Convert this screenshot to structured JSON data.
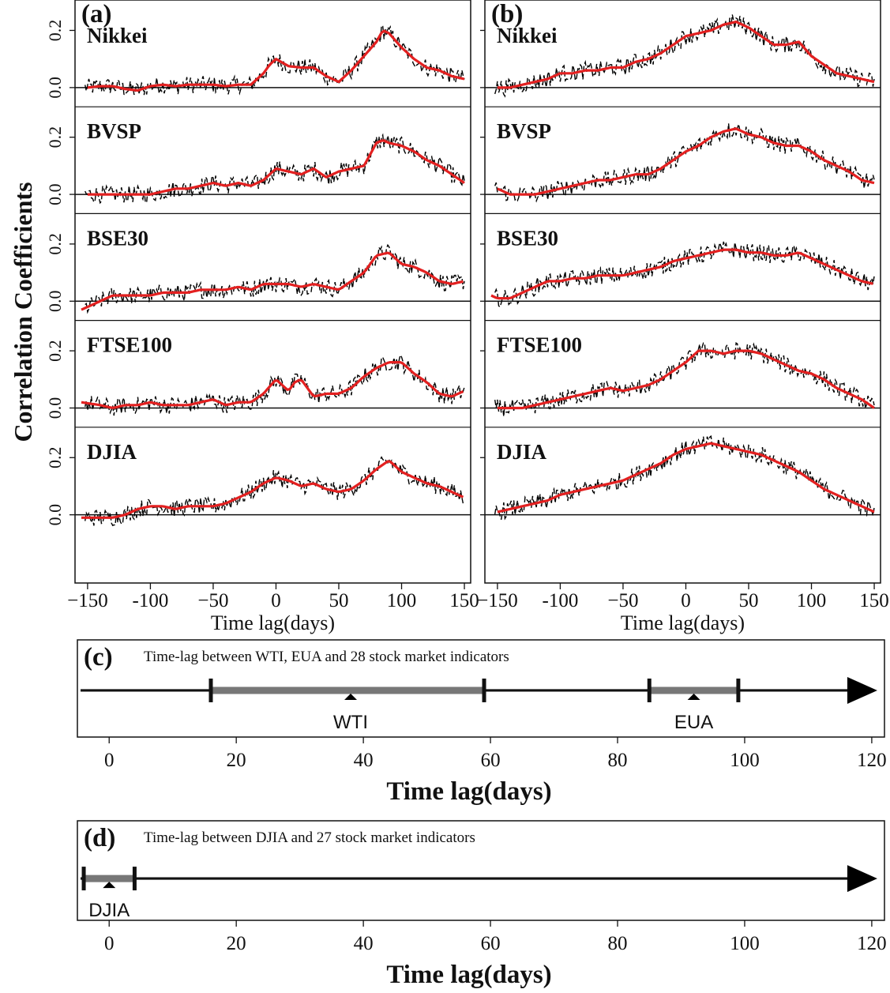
{
  "ylabel": "Correlation Coefficients",
  "chart_data": [
    {
      "type": "line",
      "panel_label": "(a)",
      "xlabel": "Time lag(days)",
      "xlim": [
        -160,
        155
      ],
      "xticks": [
        -150,
        -100,
        -50,
        0,
        50,
        100,
        150
      ],
      "xtick_labels": [
        "−150",
        "-100",
        "−50",
        "0",
        "50",
        "100",
        "150"
      ],
      "yticks": [
        0.0,
        0.2
      ],
      "ytick_labels": [
        "0.0",
        "0.2"
      ],
      "ylim_per_row": [
        -0.08,
        0.27
      ],
      "colors": {
        "raw": "#000000",
        "smooth": "#e32020"
      },
      "series": [
        {
          "name": "Nikkei",
          "x": [
            -150,
            -140,
            -130,
            -120,
            -110,
            -100,
            -90,
            -80,
            -70,
            -60,
            -50,
            -40,
            -30,
            -20,
            -10,
            -5,
            0,
            10,
            20,
            30,
            40,
            50,
            60,
            70,
            80,
            85,
            90,
            100,
            110,
            120,
            130,
            140,
            150
          ],
          "y": [
            0.0,
            0.005,
            0.005,
            -0.005,
            -0.01,
            0.005,
            0.01,
            0.005,
            0.01,
            0.01,
            0.01,
            0.005,
            0.01,
            0.01,
            0.05,
            0.08,
            0.1,
            0.075,
            0.07,
            0.07,
            0.04,
            0.02,
            0.06,
            0.11,
            0.16,
            0.2,
            0.19,
            0.14,
            0.1,
            0.07,
            0.06,
            0.04,
            0.03
          ]
        },
        {
          "name": "BVSP",
          "x": [
            -150,
            -140,
            -130,
            -120,
            -110,
            -100,
            -90,
            -80,
            -70,
            -60,
            -50,
            -40,
            -30,
            -20,
            -10,
            0,
            10,
            20,
            30,
            40,
            50,
            60,
            70,
            80,
            85,
            90,
            100,
            110,
            120,
            130,
            140,
            150
          ],
          "y": [
            0.0,
            0.0,
            0.0,
            0.0,
            0.0,
            0.0,
            0.01,
            0.02,
            0.02,
            0.03,
            0.04,
            0.03,
            0.04,
            0.03,
            0.05,
            0.09,
            0.08,
            0.07,
            0.09,
            0.06,
            0.08,
            0.09,
            0.1,
            0.18,
            0.19,
            0.18,
            0.17,
            0.15,
            0.12,
            0.1,
            0.07,
            0.04
          ]
        },
        {
          "name": "BSE30",
          "x": [
            -155,
            -150,
            -140,
            -130,
            -120,
            -110,
            -100,
            -90,
            -80,
            -70,
            -60,
            -50,
            -40,
            -30,
            -20,
            -10,
            0,
            10,
            20,
            30,
            40,
            50,
            60,
            70,
            80,
            90,
            100,
            110,
            120,
            130,
            140,
            150
          ],
          "y": [
            -0.03,
            -0.02,
            0.0,
            0.02,
            0.02,
            0.02,
            0.02,
            0.03,
            0.03,
            0.03,
            0.04,
            0.04,
            0.04,
            0.05,
            0.04,
            0.06,
            0.06,
            0.06,
            0.05,
            0.06,
            0.05,
            0.04,
            0.07,
            0.1,
            0.16,
            0.17,
            0.13,
            0.12,
            0.1,
            0.07,
            0.06,
            0.07
          ]
        },
        {
          "name": "FTSE100",
          "x": [
            -155,
            -140,
            -130,
            -120,
            -110,
            -100,
            -90,
            -80,
            -70,
            -60,
            -50,
            -40,
            -30,
            -20,
            -10,
            0,
            5,
            10,
            15,
            20,
            30,
            40,
            50,
            60,
            70,
            80,
            90,
            100,
            110,
            120,
            130,
            140,
            150
          ],
          "y": [
            0.02,
            0.01,
            0.0,
            0.01,
            0.01,
            0.02,
            0.01,
            0.01,
            0.01,
            0.02,
            0.03,
            0.01,
            0.02,
            0.02,
            0.05,
            0.1,
            0.08,
            0.06,
            0.09,
            0.1,
            0.04,
            0.05,
            0.05,
            0.07,
            0.11,
            0.14,
            0.16,
            0.16,
            0.12,
            0.09,
            0.05,
            0.04,
            0.06
          ]
        },
        {
          "name": "DJIA",
          "x": [
            -155,
            -150,
            -140,
            -130,
            -120,
            -110,
            -100,
            -90,
            -80,
            -70,
            -60,
            -50,
            -40,
            -30,
            -20,
            -10,
            0,
            10,
            20,
            30,
            40,
            50,
            60,
            70,
            80,
            90,
            100,
            110,
            120,
            130,
            140,
            150
          ],
          "y": [
            -0.01,
            -0.01,
            -0.01,
            -0.01,
            0.0,
            0.02,
            0.03,
            0.03,
            0.02,
            0.03,
            0.03,
            0.03,
            0.04,
            0.06,
            0.08,
            0.11,
            0.13,
            0.12,
            0.1,
            0.11,
            0.09,
            0.08,
            0.09,
            0.12,
            0.16,
            0.19,
            0.15,
            0.13,
            0.11,
            0.1,
            0.08,
            0.06
          ]
        }
      ]
    },
    {
      "type": "line",
      "panel_label": "(b)",
      "xlabel": "Time lag(days)",
      "xlim": [
        -160,
        155
      ],
      "xticks": [
        -150,
        -100,
        -50,
        0,
        50,
        100,
        150
      ],
      "xtick_labels": [
        "−150",
        "-100",
        "−50",
        "0",
        "50",
        "100",
        "150"
      ],
      "yticks": [
        0.0,
        0.2
      ],
      "ytick_labels": [
        "0.0",
        "0.2"
      ],
      "ylim_per_row": [
        -0.08,
        0.27
      ],
      "colors": {
        "raw": "#000000",
        "smooth": "#e32020"
      },
      "series": [
        {
          "name": "Nikkei",
          "x": [
            -150,
            -140,
            -130,
            -120,
            -110,
            -100,
            -90,
            -80,
            -70,
            -60,
            -50,
            -40,
            -30,
            -20,
            -10,
            0,
            10,
            20,
            30,
            40,
            50,
            60,
            70,
            80,
            90,
            100,
            110,
            120,
            130,
            140,
            150
          ],
          "y": [
            0.0,
            0.0,
            0.01,
            0.02,
            0.03,
            0.05,
            0.05,
            0.06,
            0.06,
            0.07,
            0.07,
            0.09,
            0.1,
            0.12,
            0.15,
            0.18,
            0.19,
            0.2,
            0.22,
            0.23,
            0.21,
            0.18,
            0.15,
            0.15,
            0.16,
            0.11,
            0.08,
            0.05,
            0.04,
            0.03,
            0.02
          ]
        },
        {
          "name": "BVSP",
          "x": [
            -150,
            -140,
            -130,
            -120,
            -110,
            -100,
            -90,
            -80,
            -70,
            -60,
            -50,
            -40,
            -30,
            -20,
            -10,
            0,
            10,
            20,
            30,
            40,
            50,
            60,
            70,
            80,
            90,
            100,
            110,
            120,
            130,
            140,
            150
          ],
          "y": [
            0.02,
            0.0,
            0.0,
            0.0,
            0.01,
            0.02,
            0.03,
            0.04,
            0.05,
            0.05,
            0.06,
            0.07,
            0.07,
            0.09,
            0.12,
            0.15,
            0.17,
            0.2,
            0.22,
            0.23,
            0.21,
            0.2,
            0.18,
            0.17,
            0.17,
            0.15,
            0.12,
            0.1,
            0.08,
            0.05,
            0.04
          ]
        },
        {
          "name": "BSE30",
          "x": [
            -155,
            -150,
            -140,
            -130,
            -120,
            -110,
            -100,
            -90,
            -80,
            -70,
            -60,
            -50,
            -40,
            -30,
            -20,
            -10,
            0,
            10,
            20,
            30,
            40,
            50,
            60,
            70,
            80,
            90,
            100,
            110,
            120,
            130,
            140,
            150
          ],
          "y": [
            0.02,
            0.01,
            0.01,
            0.03,
            0.05,
            0.07,
            0.07,
            0.08,
            0.08,
            0.09,
            0.09,
            0.09,
            0.1,
            0.11,
            0.12,
            0.14,
            0.15,
            0.16,
            0.17,
            0.18,
            0.18,
            0.17,
            0.17,
            0.16,
            0.16,
            0.17,
            0.15,
            0.13,
            0.11,
            0.09,
            0.07,
            0.06
          ]
        },
        {
          "name": "FTSE100",
          "x": [
            -150,
            -140,
            -130,
            -120,
            -110,
            -100,
            -90,
            -80,
            -70,
            -60,
            -50,
            -40,
            -30,
            -20,
            -10,
            0,
            10,
            20,
            30,
            40,
            50,
            60,
            70,
            80,
            90,
            100,
            110,
            120,
            130,
            140,
            150
          ],
          "y": [
            0.0,
            0.0,
            0.0,
            0.01,
            0.02,
            0.03,
            0.04,
            0.05,
            0.06,
            0.07,
            0.06,
            0.07,
            0.08,
            0.1,
            0.13,
            0.16,
            0.2,
            0.2,
            0.19,
            0.2,
            0.2,
            0.19,
            0.17,
            0.15,
            0.13,
            0.12,
            0.1,
            0.07,
            0.05,
            0.03,
            0.0
          ]
        },
        {
          "name": "DJIA",
          "x": [
            -150,
            -140,
            -130,
            -120,
            -110,
            -100,
            -90,
            -80,
            -70,
            -60,
            -50,
            -40,
            -30,
            -20,
            -10,
            0,
            10,
            20,
            30,
            40,
            50,
            60,
            70,
            80,
            90,
            100,
            110,
            120,
            130,
            140,
            150
          ],
          "y": [
            0.01,
            0.02,
            0.03,
            0.04,
            0.05,
            0.07,
            0.08,
            0.09,
            0.1,
            0.11,
            0.12,
            0.14,
            0.16,
            0.18,
            0.21,
            0.23,
            0.24,
            0.25,
            0.24,
            0.23,
            0.22,
            0.21,
            0.19,
            0.17,
            0.15,
            0.12,
            0.09,
            0.07,
            0.05,
            0.03,
            0.01
          ]
        }
      ]
    },
    {
      "type": "interval",
      "panel_label": "(c)",
      "title": "Time-lag between WTI, EUA and 28 stock market indicators",
      "xlabel": "Time lag(days)",
      "xlim": [
        -5,
        122
      ],
      "xticks": [
        0,
        20,
        40,
        60,
        80,
        100,
        120
      ],
      "xtick_labels": [
        "0",
        "20",
        "40",
        "60",
        "80",
        "100",
        "120"
      ],
      "intervals": [
        {
          "name": "WTI",
          "start": 16,
          "end": 59,
          "peak": 38
        },
        {
          "name": "EUA",
          "start": 85,
          "end": 99,
          "peak": 92
        }
      ]
    },
    {
      "type": "interval",
      "panel_label": "(d)",
      "title": "Time-lag between DJIA and 27 stock market indicators",
      "xlabel": "Time lag(days)",
      "xlim": [
        -5,
        122
      ],
      "xticks": [
        0,
        20,
        40,
        60,
        80,
        100,
        120
      ],
      "xtick_labels": [
        "0",
        "20",
        "40",
        "60",
        "80",
        "100",
        "120"
      ],
      "intervals": [
        {
          "name": "DJIA",
          "start": -4,
          "end": 4,
          "peak": 0
        }
      ]
    }
  ]
}
